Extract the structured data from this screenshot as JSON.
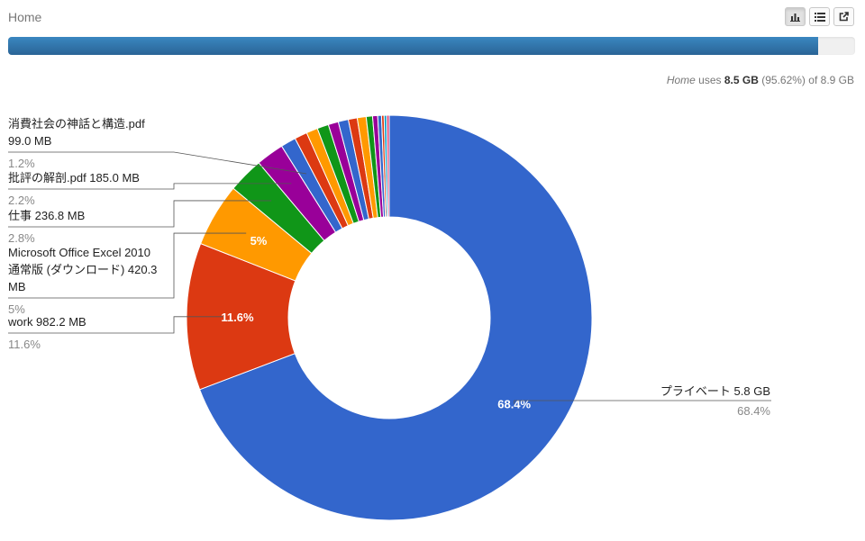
{
  "header": {
    "title": "Home"
  },
  "toolbar": {
    "chart_icon": "bar-chart-icon",
    "list_icon": "list-icon",
    "external_icon": "external-link-icon"
  },
  "usage": {
    "name": "Home",
    "uses": "uses",
    "size": "8.5 GB",
    "percent": "(95.62%)",
    "of": "of",
    "total": "8.9 GB",
    "fraction": 0.9562
  },
  "colors": {
    "accent": "#2a6496",
    "label_text": "#333333",
    "pct_text": "#888888"
  },
  "chart_data": {
    "type": "pie",
    "donut": true,
    "slices": [
      {
        "label": "プライベート 5.8 GB",
        "value": 68.4,
        "pct": "68.4%",
        "color": "#3366cc"
      },
      {
        "label": "work 982.2 MB",
        "value": 11.6,
        "pct": "11.6%",
        "color": "#dc3912"
      },
      {
        "label": "Microsoft Office Excel 2010 通常版 (ダウンロード) 420.3 MB",
        "value": 5.0,
        "pct": "5%",
        "color": "#ff9900"
      },
      {
        "label": "仕事 236.8 MB",
        "value": 2.8,
        "pct": "2.8%",
        "color": "#109618"
      },
      {
        "label": "批評の解剖.pdf 185.0 MB",
        "value": 2.2,
        "pct": "2.2%",
        "color": "#990099"
      },
      {
        "label": "消費社会の神話と構造.pdf 99.0 MB",
        "value": 1.2,
        "pct": "1.2%",
        "color": "#3366cc"
      },
      {
        "value": 1.0,
        "color": "#dc3912"
      },
      {
        "value": 0.9,
        "color": "#ff9900"
      },
      {
        "value": 0.9,
        "color": "#109618"
      },
      {
        "value": 0.8,
        "color": "#990099"
      },
      {
        "value": 0.8,
        "color": "#3366cc"
      },
      {
        "value": 0.7,
        "color": "#dc3912"
      },
      {
        "value": 0.7,
        "color": "#ff9900"
      },
      {
        "value": 0.5,
        "color": "#109618"
      },
      {
        "value": 0.4,
        "color": "#990099"
      },
      {
        "value": 0.3,
        "color": "#3366cc"
      },
      {
        "value": 0.2,
        "color": "#dc3912"
      },
      {
        "value": 0.2,
        "color": "#0099c6"
      },
      {
        "value": 0.2,
        "color": "#dd4477"
      }
    ],
    "legend": [
      {
        "slice": 0,
        "lines": [
          "プライベート 5.8 GB"
        ],
        "pct": "68.4%",
        "side": "right"
      },
      {
        "slice": 1,
        "lines": [
          "work 982.2 MB"
        ],
        "pct": "11.6%",
        "side": "left"
      },
      {
        "slice": 2,
        "lines": [
          "Microsoft Office Excel 2010",
          "通常版 (ダウンロード) 420.3",
          "MB"
        ],
        "pct": "5%",
        "side": "left"
      },
      {
        "slice": 3,
        "lines": [
          "仕事 236.8 MB"
        ],
        "pct": "2.8%",
        "side": "left"
      },
      {
        "slice": 4,
        "lines": [
          "批評の解剖.pdf 185.0 MB"
        ],
        "pct": "2.2%",
        "side": "left"
      },
      {
        "slice": 5,
        "lines": [
          "消費社会の神話と構造.pdf",
          "99.0 MB"
        ],
        "pct": "1.2%",
        "side": "left"
      }
    ],
    "in_slice_labels": [
      0,
      1,
      2
    ]
  }
}
